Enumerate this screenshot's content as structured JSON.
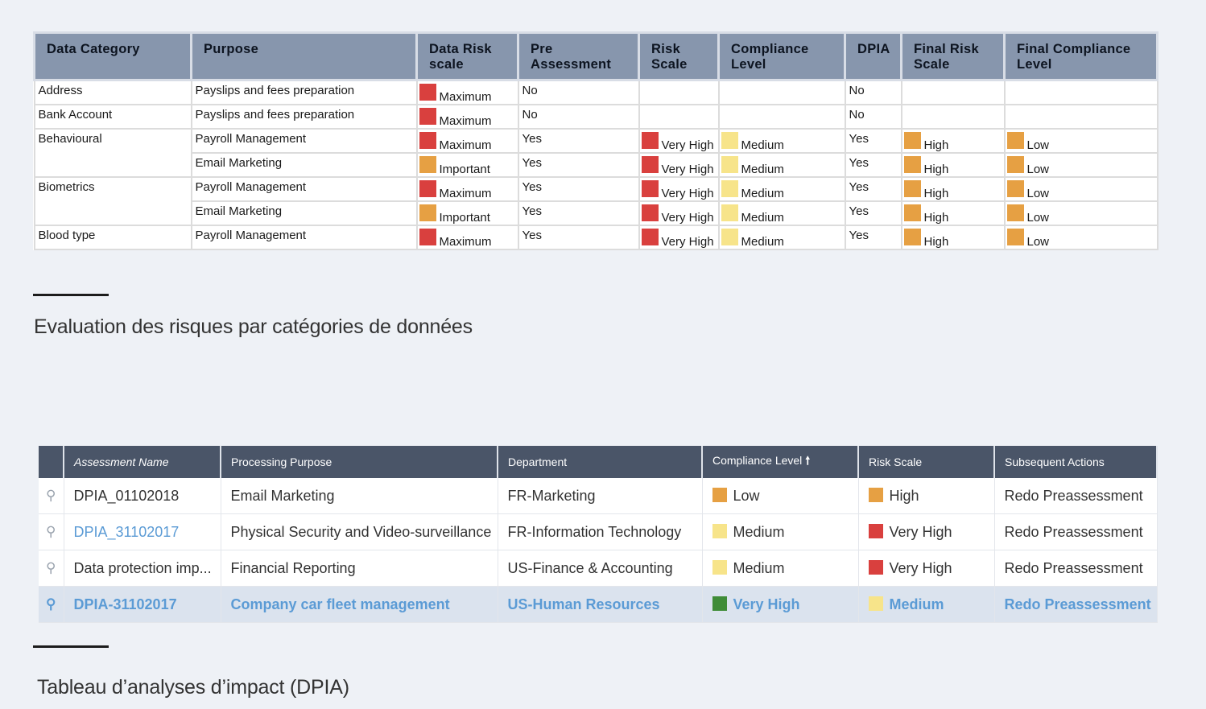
{
  "colors": {
    "red": "#d9403e",
    "orange": "#e6a043",
    "yellow": "#f7e48a",
    "green": "#3f8c37",
    "link": "#5b9bd5"
  },
  "table1": {
    "headers": [
      "Data Category",
      "Purpose",
      "Data Risk scale",
      "Pre Assessment",
      "Risk Scale",
      "Compliance Level",
      "DPIA",
      "Final Risk Scale",
      "Final Compliance Level"
    ],
    "rows": [
      {
        "category": "Address",
        "purpose": "Payslips and fees preparation",
        "data_risk": "Maximum",
        "pre": "No",
        "risk": "",
        "compliance": "",
        "dpia": "No",
        "final_risk": "",
        "final_compliance": ""
      },
      {
        "category": "Bank Account",
        "purpose": "Payslips and fees preparation",
        "data_risk": "Maximum",
        "pre": "No",
        "risk": "",
        "compliance": "",
        "dpia": "No",
        "final_risk": "",
        "final_compliance": ""
      },
      {
        "category": "Behavioural",
        "purpose": "Payroll Management",
        "data_risk": "Maximum",
        "pre": "Yes",
        "risk": "Very High",
        "compliance": "Medium",
        "dpia": "Yes",
        "final_risk": "High",
        "final_compliance": "Low"
      },
      {
        "category": "",
        "purpose": "Email Marketing",
        "data_risk": "Important",
        "pre": "Yes",
        "risk": "Very High",
        "compliance": "Medium",
        "dpia": "Yes",
        "final_risk": "High",
        "final_compliance": "Low"
      },
      {
        "category": "Biometrics",
        "purpose": "Payroll Management",
        "data_risk": "Maximum",
        "pre": "Yes",
        "risk": "Very High",
        "compliance": "Medium",
        "dpia": "Yes",
        "final_risk": "High",
        "final_compliance": "Low"
      },
      {
        "category": "",
        "purpose": "Email Marketing",
        "data_risk": "Important",
        "pre": "Yes",
        "risk": "Very High",
        "compliance": "Medium",
        "dpia": "Yes",
        "final_risk": "High",
        "final_compliance": "Low"
      },
      {
        "category": "Blood type",
        "purpose": "Payroll Management",
        "data_risk": "Maximum",
        "pre": "Yes",
        "risk": "Very High",
        "compliance": "Medium",
        "dpia": "Yes",
        "final_risk": "High",
        "final_compliance": "Low"
      }
    ]
  },
  "caption1": "Evaluation des risques par catégories de données",
  "table2": {
    "headers": [
      "Assessment Name",
      "Processing Purpose",
      "Department",
      "Compliance Level",
      "Risk Scale",
      "Subsequent Actions"
    ],
    "sort_indicator": "🠕",
    "search_icon": "⚲",
    "rows": [
      {
        "name": "DPIA_01102018",
        "purpose": "Email Marketing",
        "department": "FR-Marketing",
        "compliance": "Low",
        "compliance_color": "orange",
        "risk": "High",
        "risk_color": "orange",
        "action": "Redo Preassessment"
      },
      {
        "name": "DPIA_31102017",
        "purpose": "Physical Security and Video-surveillance",
        "department": "FR-Information Technology",
        "compliance": "Medium",
        "compliance_color": "yellow",
        "risk": "Very High",
        "risk_color": "red",
        "action": "Redo Preassessment"
      },
      {
        "name": "Data protection imp...",
        "purpose": "Financial Reporting",
        "department": "US-Finance & Accounting",
        "compliance": "Medium",
        "compliance_color": "yellow",
        "risk": "Very High",
        "risk_color": "red",
        "action": "Redo Preassessment"
      },
      {
        "name": "DPIA-31102017",
        "purpose": "Company car fleet management",
        "department": "US-Human Resources",
        "compliance": "Very High",
        "compliance_color": "green",
        "risk": "Medium",
        "risk_color": "yellow",
        "action": "Redo Preassessment"
      }
    ]
  },
  "caption2": "Tableau d’analyses d’impact (DPIA)"
}
